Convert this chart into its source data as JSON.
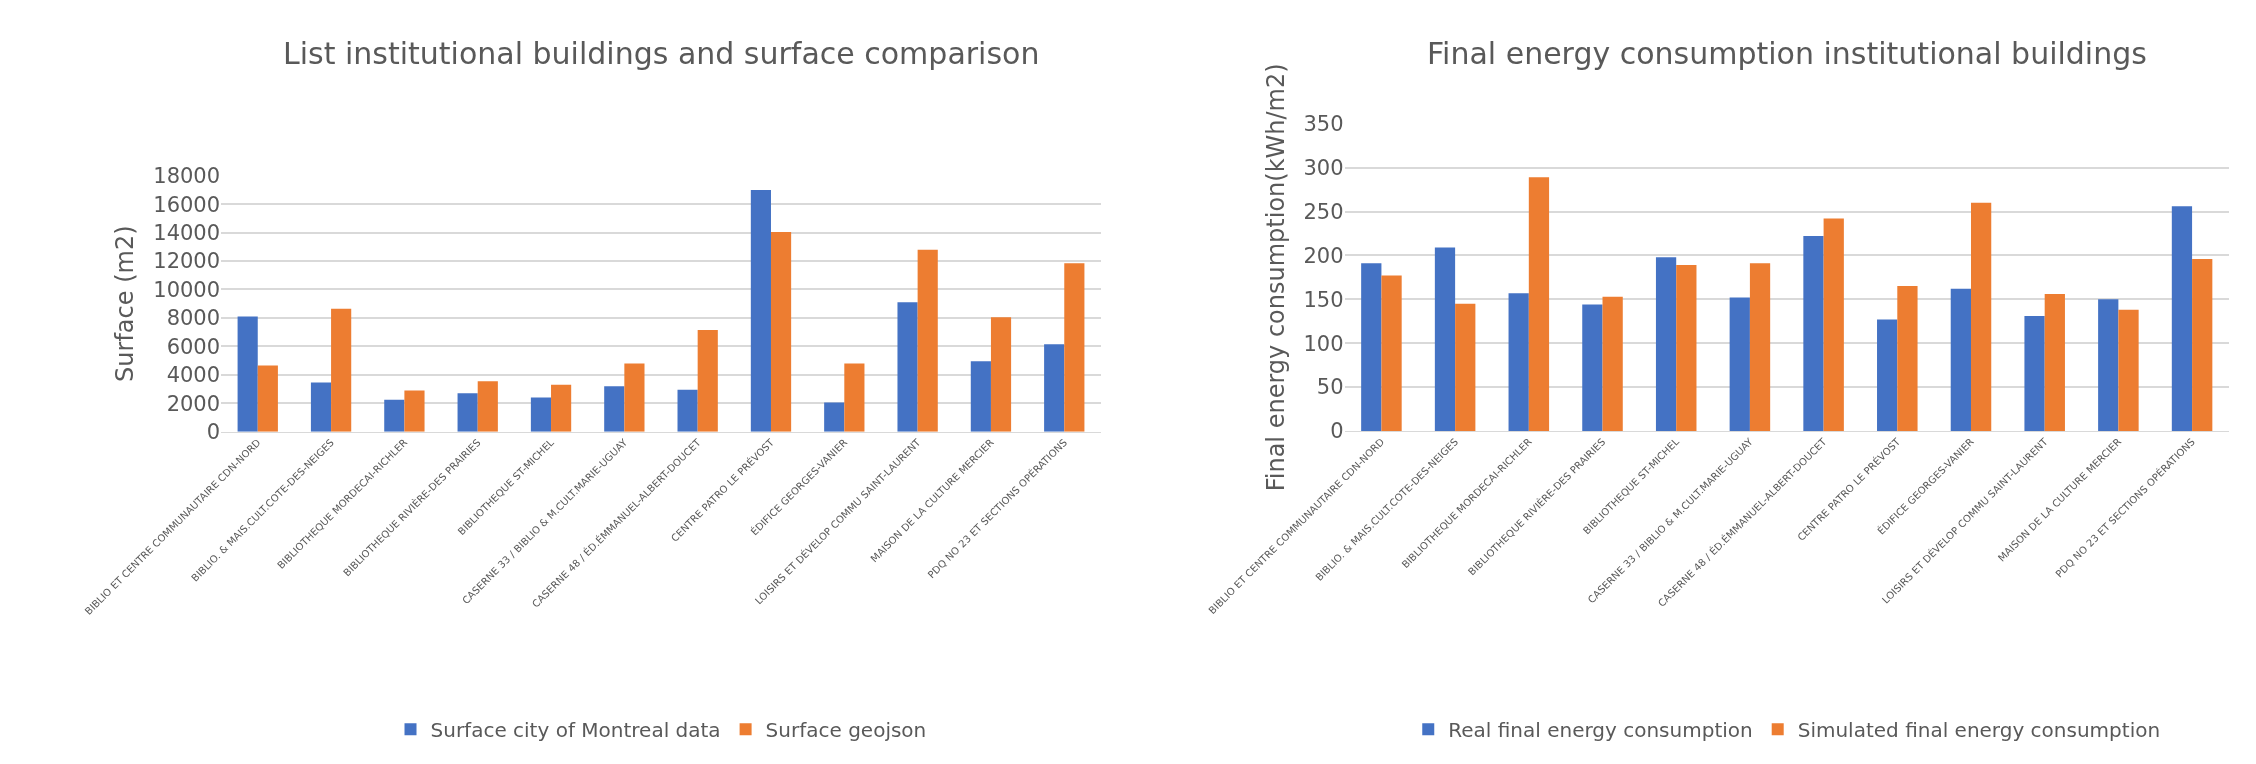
{
  "chart_data": [
    {
      "type": "bar",
      "title": "List institutional buildings and surface comparison",
      "ylabel": "Surface (m2)",
      "categories": [
        "BIBLIO ET CENTRE COMMUNAUTAIRE CDN-NORD",
        "BIBLIO. & MAIS.CULT.COTE-DES-NEIGES",
        "BIBLIOTHEQUE MORDECAI-RICHLER",
        "BIBLIOTHEQUE RIVIÈRE-DES PRAIRIES",
        "BIBLIOTHEQUE ST-MICHEL",
        "CASERNE 33 / BIBLIO & M.CULT.MARIE-UGUAY",
        "CASERNE 48 / ÉD.ÉMMANUEL-ALBERT-DOUCET",
        "CENTRE PATRO LE PRÉVOST",
        "ÉDIFICE GEORGES-VANIER",
        "LOISIRS ET DÉVELOP COMMU SAINT-LAURENT",
        "MAISON DE LA CULTURE MERCIER",
        "PDQ NO 23 ET SECTIONS OPÉRATIONS"
      ],
      "series": [
        {
          "name": "Surface city of Montreal data",
          "color": "#4472c4",
          "values": [
            8100,
            3450,
            2250,
            2700,
            2400,
            3200,
            2950,
            17000,
            2050,
            9100,
            4950,
            6150
          ]
        },
        {
          "name": "Surface geojson",
          "color": "#ed7d31",
          "values": [
            4650,
            8650,
            2900,
            3550,
            3300,
            4800,
            7150,
            14050,
            4800,
            12800,
            8050,
            11850
          ]
        }
      ],
      "ylim": [
        0,
        18000
      ],
      "yticks": [
        0,
        2000,
        4000,
        6000,
        8000,
        10000,
        12000,
        14000,
        16000,
        18000
      ],
      "grid": "y",
      "legend": "bottom"
    },
    {
      "type": "bar",
      "title": "Final energy consumption institutional buildings",
      "ylabel": "Final energy consumption(kWh/m2)",
      "categories": [
        "BIBLIO ET CENTRE COMMUNAUTAIRE CDN-NORD",
        "BIBLIO. & MAIS.CULT.COTE-DES-NEIGES",
        "BIBLIOTHEQUE MORDECAI-RICHLER",
        "BIBLIOTHEQUE RIVIÈRE-DES PRAIRIES",
        "BIBLIOTHEQUE ST-MICHEL",
        "CASERNE 33 / BIBLIO & M.CULT.MARIE-UGUAY",
        "CASERNE 48 / ÉD.ÉMMANUEL-ALBERT-DOUCET",
        "CENTRE PATRO LE PRÉVOST",
        "ÉDIFICE GEORGES-VANIER",
        "LOISIRS ET DÉVELOP COMMU SAINT-LAURENT",
        "MAISON DE LA CULTURE MERCIER",
        "PDQ NO 23 ET SECTIONS OPÉRATIONS"
      ],
      "series": [
        {
          "name": "Real final energy consumption",
          "color": "#4472c4",
          "values": [
            191,
            209,
            157,
            144,
            198,
            152,
            222,
            127,
            162,
            131,
            150,
            256
          ]
        },
        {
          "name": "Simulated final energy consumption",
          "color": "#ed7d31",
          "values": [
            177,
            145,
            289,
            153,
            189,
            191,
            242,
            165,
            260,
            156,
            138,
            196
          ]
        }
      ],
      "ylim": [
        0,
        350
      ],
      "yticks": [
        0,
        50,
        100,
        150,
        200,
        250,
        300,
        350
      ],
      "grid": "y",
      "legend": "bottom"
    }
  ]
}
